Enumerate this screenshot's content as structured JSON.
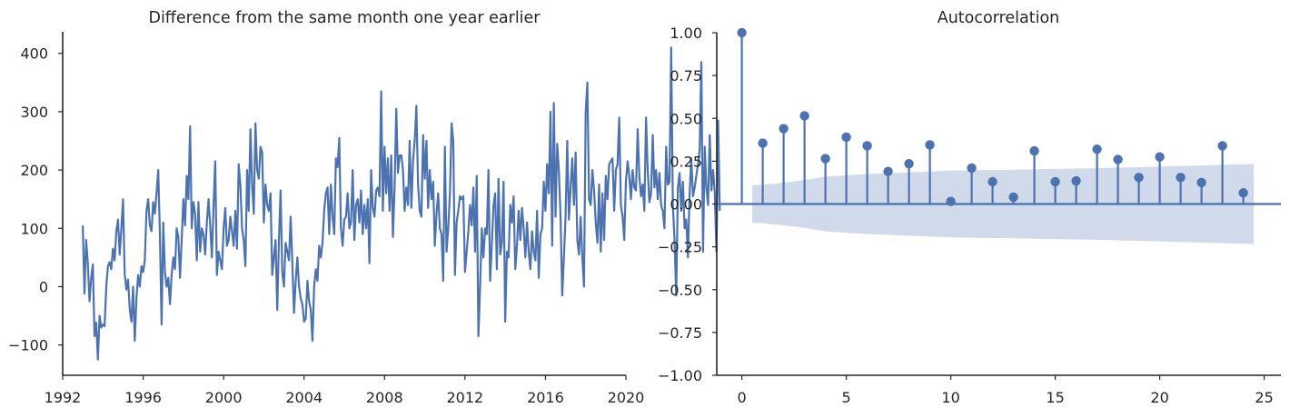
{
  "colors": {
    "series": "#4c72b0",
    "confidence_band": "#d1daea",
    "axis": "#262626",
    "background": "#ffffff"
  },
  "chart_data": [
    {
      "type": "line",
      "title": "Difference from the same month one year earlier",
      "xlabel": "",
      "ylabel": "",
      "xlim": [
        1992.0,
        2020.0
      ],
      "ylim": [
        -152,
        437
      ],
      "x_ticks": [
        1992,
        1996,
        2000,
        2004,
        2008,
        2012,
        2016,
        2020
      ],
      "y_ticks": [
        -100,
        0,
        100,
        200,
        300,
        400
      ],
      "x_tick_labels": [
        "1992",
        "1996",
        "2000",
        "2004",
        "2008",
        "2012",
        "2016",
        "2020"
      ],
      "y_tick_labels": [
        "−100",
        "0",
        "100",
        "200",
        "300",
        "400"
      ],
      "grid": false,
      "x_start": "1993-01",
      "frequency": "monthly",
      "series": [
        {
          "values": [
            105,
            -12,
            80,
            40,
            -25,
            15,
            38,
            -85,
            -62,
            -125,
            -50,
            -70,
            -65,
            -68,
            0,
            35,
            42,
            30,
            65,
            45,
            95,
            115,
            55,
            100,
            150,
            22,
            -5,
            12,
            -38,
            -60,
            0,
            -93,
            -20,
            20,
            0,
            35,
            25,
            45,
            130,
            150,
            105,
            95,
            145,
            125,
            160,
            200,
            90,
            -65,
            110,
            25,
            0,
            15,
            -30,
            20,
            50,
            30,
            100,
            85,
            15,
            80,
            150,
            105,
            190,
            150,
            275,
            100,
            145,
            125,
            45,
            145,
            60,
            100,
            90,
            55,
            110,
            150,
            105,
            50,
            140,
            215,
            20,
            60,
            45,
            30,
            100,
            135,
            70,
            80,
            120,
            95,
            70,
            130,
            65,
            210,
            175,
            100,
            80,
            35,
            200,
            130,
            270,
            175,
            125,
            280,
            200,
            185,
            240,
            230,
            110,
            175,
            140,
            130,
            160,
            20,
            50,
            80,
            -40,
            80,
            165,
            25,
            0,
            75,
            60,
            45,
            120,
            40,
            -45,
            10,
            50,
            0,
            -20,
            -30,
            -60,
            -55,
            10,
            -25,
            -40,
            -93,
            0,
            30,
            10,
            70,
            50,
            75,
            130,
            160,
            170,
            90,
            175,
            120,
            90,
            220,
            205,
            255,
            100,
            70,
            115,
            120,
            160,
            100,
            110,
            200,
            80,
            140,
            150,
            110,
            165,
            90,
            140,
            100,
            150,
            40,
            200,
            135,
            120,
            165,
            170,
            155,
            335,
            130,
            240,
            160,
            220,
            130,
            225,
            85,
            170,
            305,
            195,
            225,
            225,
            200,
            130,
            170,
            140,
            250,
            135,
            215,
            250,
            310,
            175,
            130,
            120,
            260,
            185,
            250,
            135,
            200,
            150,
            180,
            70,
            125,
            160,
            100,
            90,
            10,
            240,
            60,
            100,
            160,
            280,
            250,
            20,
            110,
            130,
            155,
            150,
            155,
            25,
            60,
            95,
            140,
            105,
            170,
            60,
            190,
            -85,
            0,
            100,
            50,
            100,
            90,
            200,
            10,
            70,
            140,
            160,
            30,
            185,
            55,
            75,
            180,
            -60,
            60,
            50,
            140,
            110,
            155,
            30,
            70,
            130,
            80,
            135,
            100,
            50,
            110,
            60,
            30,
            95,
            60,
            45,
            130,
            15,
            90,
            100,
            180,
            130,
            210,
            160,
            300,
            70,
            315,
            120,
            245,
            200,
            120,
            -15,
            50,
            120,
            250,
            115,
            170,
            220,
            140,
            230,
            80,
            55,
            120,
            50,
            0,
            300,
            350,
            150,
            140,
            200,
            165,
            110,
            75,
            175,
            60,
            160,
            80,
            190,
            150,
            210,
            215,
            220,
            130,
            200,
            210,
            290,
            140,
            120,
            80,
            180,
            215,
            190,
            150,
            200,
            170,
            165,
            270,
            190,
            155,
            175,
            130,
            290,
            200,
            145,
            160,
            260,
            170,
            200,
            150,
            195,
            140,
            130,
            100,
            240,
            175,
            180,
            410,
            140,
            80,
            -15,
            170,
            195,
            130,
            180,
            100,
            115,
            50,
            160,
            220,
            155,
            170,
            190,
            210,
            235,
            385,
            60,
            240,
            170,
            140,
            260,
            165,
            200,
            160,
            60,
            285,
            130
          ]
        }
      ]
    },
    {
      "type": "stem",
      "title": "Autocorrelation",
      "xlabel": "",
      "ylabel": "",
      "xlim": [
        -1.2,
        25.8
      ],
      "ylim": [
        -1.0,
        1.0
      ],
      "x_ticks": [
        0,
        5,
        10,
        15,
        20,
        25
      ],
      "y_ticks": [
        -1.0,
        -0.75,
        -0.5,
        -0.25,
        0.0,
        0.25,
        0.5,
        0.75,
        1.0
      ],
      "x_tick_labels": [
        "0",
        "5",
        "10",
        "15",
        "20",
        "25"
      ],
      "y_tick_labels": [
        "−1.00",
        "−0.75",
        "−0.50",
        "−0.25",
        "0.00",
        "0.25",
        "0.50",
        "0.75",
        "1.00"
      ],
      "grid": false,
      "lags": [
        0,
        1,
        2,
        3,
        4,
        5,
        6,
        7,
        8,
        9,
        10,
        11,
        12,
        13,
        14,
        15,
        16,
        17,
        18,
        19,
        20,
        21,
        22,
        23,
        24
      ],
      "values": [
        1.0,
        0.355,
        0.44,
        0.515,
        0.265,
        0.39,
        0.34,
        0.19,
        0.235,
        0.345,
        0.015,
        0.21,
        0.13,
        0.04,
        0.31,
        0.13,
        0.135,
        0.32,
        0.26,
        0.155,
        0.275,
        0.155,
        0.125,
        0.34,
        0.065
      ],
      "confidence_band": {
        "lags": [
          0.5,
          1,
          2,
          3,
          4,
          5,
          6,
          7,
          8,
          9,
          10,
          11,
          12,
          13,
          14,
          15,
          16,
          17,
          18,
          19,
          20,
          21,
          22,
          23,
          24,
          24.5
        ],
        "upper": [
          0.11,
          0.112,
          0.125,
          0.14,
          0.16,
          0.168,
          0.175,
          0.18,
          0.185,
          0.19,
          0.195,
          0.197,
          0.199,
          0.2,
          0.203,
          0.205,
          0.207,
          0.209,
          0.212,
          0.215,
          0.218,
          0.222,
          0.225,
          0.228,
          0.232,
          0.235
        ]
      }
    }
  ]
}
